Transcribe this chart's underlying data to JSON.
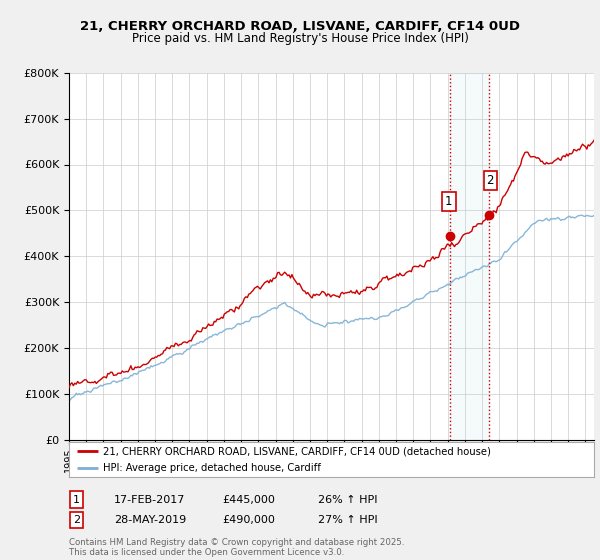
{
  "title_line1": "21, CHERRY ORCHARD ROAD, LISVANE, CARDIFF, CF14 0UD",
  "title_line2": "Price paid vs. HM Land Registry's House Price Index (HPI)",
  "bg_color": "#f0f0f0",
  "plot_bg_color": "#ffffff",
  "red_color": "#cc0000",
  "blue_color": "#7bafd4",
  "vline_color": "#cc0000",
  "legend_line1": "21, CHERRY ORCHARD ROAD, LISVANE, CARDIFF, CF14 0UD (detached house)",
  "legend_line2": "HPI: Average price, detached house, Cardiff",
  "table_row1": [
    "1",
    "17-FEB-2017",
    "£445,000",
    "26% ↑ HPI"
  ],
  "table_row2": [
    "2",
    "28-MAY-2019",
    "£490,000",
    "27% ↑ HPI"
  ],
  "footer": "Contains HM Land Registry data © Crown copyright and database right 2025.\nThis data is licensed under the Open Government Licence v3.0.",
  "ylim_max": 800000,
  "xmin": 1995,
  "xmax": 2025.5,
  "pt1_year": 2017.12,
  "pt1_price": 445000,
  "pt2_year": 2019.42,
  "pt2_price": 490000
}
